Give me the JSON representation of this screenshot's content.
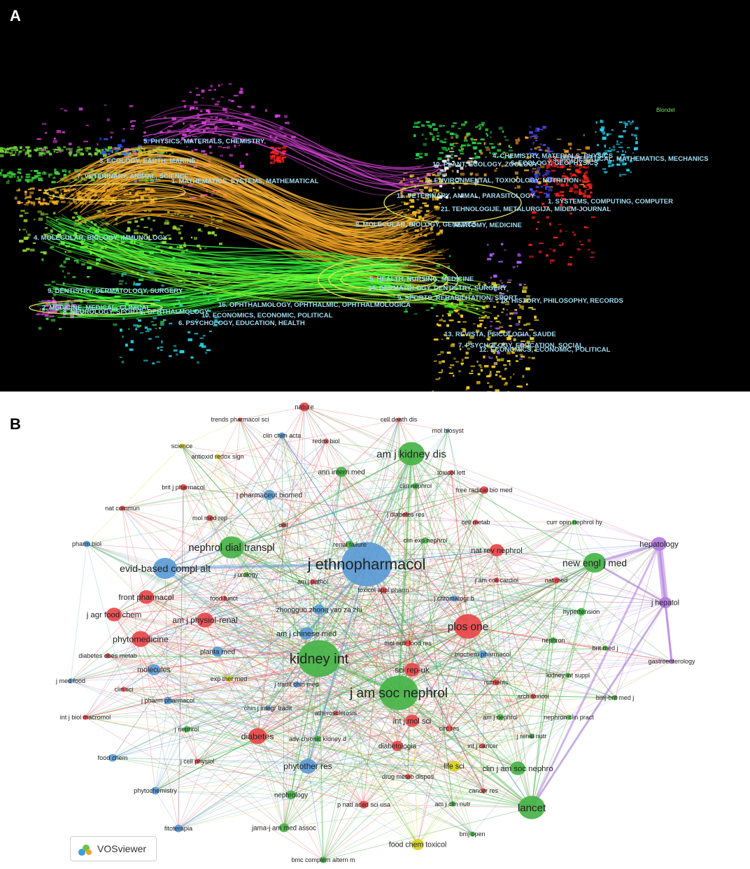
{
  "panel_a": {
    "letter": "A",
    "algorithm_label": "Blondel",
    "clusters": [
      {
        "key": "a1",
        "label": "5. PHYSICS, MATERIALS, CHEMISTRY"
      },
      {
        "key": "a2",
        "label": "3. ECOLOGY, EARTH, MARINE"
      },
      {
        "key": "a3",
        "label": "7. VETERINARY, ANIMAL, SCIENCE"
      },
      {
        "key": "a4",
        "label": "1. MATHEMATICS, SYSTEMS, MATHEMATICAL"
      },
      {
        "key": "a5",
        "label": "4. MOLECULAR, BIOLOGY, IMMUNOLOGY"
      },
      {
        "key": "a6",
        "label": "9. DENTISTRY, DERMATOLOGY, SURGERY"
      },
      {
        "key": "a7",
        "label": "2. MEDICINE, MEDICAL, CLINICAL"
      },
      {
        "key": "a8",
        "label": "8. NEUROLOGY, SPORTS, OPHTHALMOLOGY"
      },
      {
        "key": "a9",
        "label": "16. OPHTHALMOLOGY, OPHTHALMIC, OPHTHALMOLOGICA"
      },
      {
        "key": "a10",
        "label": "10. ECONOMICS, ECONOMIC, POLITICAL"
      },
      {
        "key": "a11",
        "label": "6. PSYCHOLOGY, EDUCATION, HEALTH"
      },
      {
        "key": "a12",
        "label": "4. CHEMISTRY, MATERIALS, PHYSICS"
      },
      {
        "key": "a13",
        "label": "3. MATHEMATICAL, MATHEMATICS, MECHANICS"
      },
      {
        "key": "a14",
        "label": "10. PLANT, ECOLOGY, ZOOLOGY"
      },
      {
        "key": "a15",
        "label": "6. ECOLOGY, GEOPHYSICS"
      },
      {
        "key": "a16",
        "label": "2. ENVIRONMENTAL, TOXICOLOGY, NUTRITION"
      },
      {
        "key": "a17",
        "label": "11. VETERINARY, ANIMAL, PARASITOLOGY"
      },
      {
        "key": "a18",
        "label": "1. SYSTEMS, COMPUTING, COMPUTER"
      },
      {
        "key": "a19",
        "label": "21. TEHNOLOGIJE, METALURGIJA, MIDEM-JOURNAL"
      },
      {
        "key": "a20",
        "label": "8. MOLECULAR, BIOLOGY, GENETICS"
      },
      {
        "key": "a21",
        "label": "ANATOMY, MEDICINE"
      },
      {
        "key": "a22",
        "label": "5. HEALTH, NURSING, MEDICINE"
      },
      {
        "key": "a23",
        "label": "14. DERMATOLOGY, DENTISTRY, SURGERY"
      },
      {
        "key": "a24",
        "label": "9. SPORTS, REHABILITATION, SPORT"
      },
      {
        "key": "a25",
        "label": "18. HISTORY, PHILOSOPHY, RECORDS"
      },
      {
        "key": "a26",
        "label": "13. REVISTA, PSICOLOGIA, SAUDE"
      },
      {
        "key": "a27",
        "label": "7. PSYCHOLOGY, EDUCATION, SOCIAL"
      },
      {
        "key": "a28",
        "label": "12. ECONOMICS, ECONOMIC, POLITICAL"
      }
    ]
  },
  "panel_b": {
    "letter": "B",
    "logo_text": "VOSviewer",
    "colors": {
      "red": "#e8464a",
      "green": "#47b447",
      "blue": "#5b9bd5",
      "yellow": "#d8d21f",
      "purple": "#b27be0"
    },
    "nodes": [
      {
        "key": "n1",
        "label": "nature",
        "color": "red",
        "size": 7
      },
      {
        "key": "n2",
        "label": "trends pharmacol sci",
        "color": "red",
        "size": 3
      },
      {
        "key": "n3",
        "label": "cell death dis",
        "color": "red",
        "size": 3
      },
      {
        "key": "n4",
        "label": "mol biosyst",
        "color": "blue",
        "size": 3
      },
      {
        "key": "n5",
        "label": "clin chim acta",
        "color": "blue",
        "size": 5
      },
      {
        "key": "n6",
        "label": "redox biol",
        "color": "red",
        "size": 4
      },
      {
        "key": "n7",
        "label": "science",
        "color": "yellow",
        "size": 4
      },
      {
        "key": "n8",
        "label": "antioxid redox sign",
        "color": "yellow",
        "size": 4
      },
      {
        "key": "n9",
        "label": "am j kidney dis",
        "color": "green",
        "size": 19
      },
      {
        "key": "n10",
        "label": "ann intern med",
        "color": "green",
        "size": 8
      },
      {
        "key": "n11",
        "label": "toxicol lett",
        "color": "red",
        "size": 4
      },
      {
        "key": "n12",
        "label": "clin nephrol",
        "color": "green",
        "size": 5
      },
      {
        "key": "n13",
        "label": "brit j pharmacol",
        "color": "red",
        "size": 5
      },
      {
        "key": "n14",
        "label": "j pharmaceut biomed",
        "color": "blue",
        "size": 8
      },
      {
        "key": "n15",
        "label": "free radical bio med",
        "color": "red",
        "size": 6
      },
      {
        "key": "n16",
        "label": "nat commun",
        "color": "red",
        "size": 4
      },
      {
        "key": "n17",
        "label": "mol med rep",
        "color": "red",
        "size": 5
      },
      {
        "key": "n18",
        "label": "j diabetes res",
        "color": "red",
        "size": 4
      },
      {
        "key": "n19",
        "label": "cell",
        "color": "red",
        "size": 4
      },
      {
        "key": "n20",
        "label": "cell metab",
        "color": "red",
        "size": 4
      },
      {
        "key": "n21",
        "label": "curr opin nephrol hy",
        "color": "green",
        "size": 4
      },
      {
        "key": "n22",
        "label": "pharm biol",
        "color": "blue",
        "size": 5
      },
      {
        "key": "n23",
        "label": "nephrol dial transpl",
        "color": "green",
        "size": 18
      },
      {
        "key": "n24",
        "label": "renal failure",
        "color": "green",
        "size": 6
      },
      {
        "key": "n25",
        "label": "clin exp nephrol",
        "color": "green",
        "size": 5
      },
      {
        "key": "n26",
        "label": "nat rev nephrol",
        "color": "red",
        "size": 10
      },
      {
        "key": "n27",
        "label": "hepatology",
        "color": "purple",
        "size": 11
      },
      {
        "key": "n28",
        "label": "j ethnopharmacol",
        "color": "blue",
        "size": 36
      },
      {
        "key": "n29",
        "label": "evid-based compl alt",
        "color": "blue",
        "size": 17
      },
      {
        "key": "n30",
        "label": "new engl j med",
        "color": "green",
        "size": 16
      },
      {
        "key": "n31",
        "label": "j urology",
        "color": "green",
        "size": 4
      },
      {
        "key": "n32",
        "label": "am j pathol",
        "color": "red",
        "size": 4
      },
      {
        "key": "n33",
        "label": "j am coll cardiol",
        "color": "red",
        "size": 4
      },
      {
        "key": "n34",
        "label": "nat med",
        "color": "red",
        "size": 5
      },
      {
        "key": "n35",
        "label": "front pharmacol",
        "color": "red",
        "size": 11
      },
      {
        "key": "n36",
        "label": "food funct",
        "color": "red",
        "size": 4
      },
      {
        "key": "n37",
        "label": "toxicol appl pharm",
        "color": "red",
        "size": 5
      },
      {
        "key": "n38",
        "label": "j chromatogr b",
        "color": "blue",
        "size": 5
      },
      {
        "key": "n39",
        "label": "j hepatol",
        "color": "purple",
        "size": 9
      },
      {
        "key": "n40",
        "label": "zhongguo zhong yao za zhi",
        "color": "blue",
        "size": 8
      },
      {
        "key": "n41",
        "label": "j agr food chem",
        "color": "red",
        "size": 11
      },
      {
        "key": "n42",
        "label": "am j physiol-renal",
        "color": "red",
        "size": 12
      },
      {
        "key": "n43",
        "label": "hypertension",
        "color": "green",
        "size": 6
      },
      {
        "key": "n44",
        "label": "plos one",
        "color": "red",
        "size": 20
      },
      {
        "key": "n45",
        "label": "phytomedicine",
        "color": "red",
        "size": 13
      },
      {
        "key": "n46",
        "label": "am j chinese med",
        "color": "blue",
        "size": 10
      },
      {
        "key": "n47",
        "label": "nephron",
        "color": "green",
        "size": 5
      },
      {
        "key": "n48",
        "label": "diabetes obes metab",
        "color": "red",
        "size": 4
      },
      {
        "key": "n49",
        "label": "kidney int",
        "color": "green",
        "size": 30
      },
      {
        "key": "n50",
        "label": "mol nutr food res",
        "color": "red",
        "size": 5
      },
      {
        "key": "n51",
        "label": "biochem pharmacol",
        "color": "blue",
        "size": 6
      },
      {
        "key": "n52",
        "label": "brit med j",
        "color": "green",
        "size": 4
      },
      {
        "key": "n53",
        "label": "planta med",
        "color": "blue",
        "size": 8
      },
      {
        "key": "n54",
        "label": "gastroenterology",
        "color": "purple",
        "size": 4
      },
      {
        "key": "n55",
        "label": "molecules",
        "color": "blue",
        "size": 9
      },
      {
        "key": "n56",
        "label": "sci rep-uk",
        "color": "red",
        "size": 11
      },
      {
        "key": "n57",
        "label": "exp ther med",
        "color": "yellow",
        "size": 5
      },
      {
        "key": "n58",
        "label": "j tradit chin med",
        "color": "blue",
        "size": 5
      },
      {
        "key": "n59",
        "label": "nutrients",
        "color": "red",
        "size": 5
      },
      {
        "key": "n60",
        "label": "kidney int suppl",
        "color": "green",
        "size": 4
      },
      {
        "key": "n61",
        "label": "j med food",
        "color": "blue",
        "size": 4
      },
      {
        "key": "n62",
        "label": "clin sci",
        "color": "red",
        "size": 4
      },
      {
        "key": "n63",
        "label": "j am soc nephrol",
        "color": "green",
        "size": 28
      },
      {
        "key": "n64",
        "label": "arch toxicol",
        "color": "red",
        "size": 4
      },
      {
        "key": "n65",
        "label": "bmj-brit med j",
        "color": "green",
        "size": 4
      },
      {
        "key": "n66",
        "label": "j pharm pharmacol",
        "color": "blue",
        "size": 6
      },
      {
        "key": "n67",
        "label": "int j biol macromol",
        "color": "red",
        "size": 4
      },
      {
        "key": "n68",
        "label": "chin j integr tradit",
        "color": "blue",
        "size": 4
      },
      {
        "key": "n69",
        "label": "atherosclerosis",
        "color": "red",
        "size": 4
      },
      {
        "key": "n70",
        "label": "int j mol sci",
        "color": "red",
        "size": 10
      },
      {
        "key": "n71",
        "label": "am j nephrol",
        "color": "green",
        "size": 5
      },
      {
        "key": "n72",
        "label": "nephron clin pract",
        "color": "green",
        "size": 4
      },
      {
        "key": "n73",
        "label": "j nephrol",
        "color": "green",
        "size": 5
      },
      {
        "key": "n74",
        "label": "circ res",
        "color": "red",
        "size": 5
      },
      {
        "key": "n75",
        "label": "diabetes",
        "color": "red",
        "size": 13
      },
      {
        "key": "n76",
        "label": "adv chronic kidney d",
        "color": "green",
        "size": 5
      },
      {
        "key": "n77",
        "label": "j renal nutr",
        "color": "green",
        "size": 4
      },
      {
        "key": "n78",
        "label": "food chem",
        "color": "blue",
        "size": 6
      },
      {
        "key": "n79",
        "label": "j cell physiol",
        "color": "red",
        "size": 4
      },
      {
        "key": "n80",
        "label": "diabetologia",
        "color": "red",
        "size": 8
      },
      {
        "key": "n81",
        "label": "int j cancer",
        "color": "red",
        "size": 4
      },
      {
        "key": "n82",
        "label": "phytother res",
        "color": "blue",
        "size": 12
      },
      {
        "key": "n83",
        "label": "life sci",
        "color": "yellow",
        "size": 9
      },
      {
        "key": "n84",
        "label": "clin j am soc nephro",
        "color": "green",
        "size": 11
      },
      {
        "key": "n85",
        "label": "drug metab dispos",
        "color": "red",
        "size": 4
      },
      {
        "key": "n86",
        "label": "phytochemistry",
        "color": "blue",
        "size": 6
      },
      {
        "key": "n87",
        "label": "cancer res",
        "color": "red",
        "size": 4
      },
      {
        "key": "n88",
        "label": "nephrology",
        "color": "green",
        "size": 7
      },
      {
        "key": "n89",
        "label": "p natl acad sci usa",
        "color": "red",
        "size": 6
      },
      {
        "key": "n90",
        "label": "am j clin nutr",
        "color": "green",
        "size": 4
      },
      {
        "key": "n91",
        "label": "lancet",
        "color": "green",
        "size": 19
      },
      {
        "key": "n92",
        "label": "fitoterapia",
        "color": "blue",
        "size": 6
      },
      {
        "key": "n93",
        "label": "jama-j am med assoc",
        "color": "green",
        "size": 7
      },
      {
        "key": "n94",
        "label": "bmj open",
        "color": "green",
        "size": 4
      },
      {
        "key": "n95",
        "label": "food chem toxicol",
        "color": "yellow",
        "size": 9
      },
      {
        "key": "n96",
        "label": "bmc complem altern m",
        "color": "green",
        "size": 5
      }
    ]
  }
}
